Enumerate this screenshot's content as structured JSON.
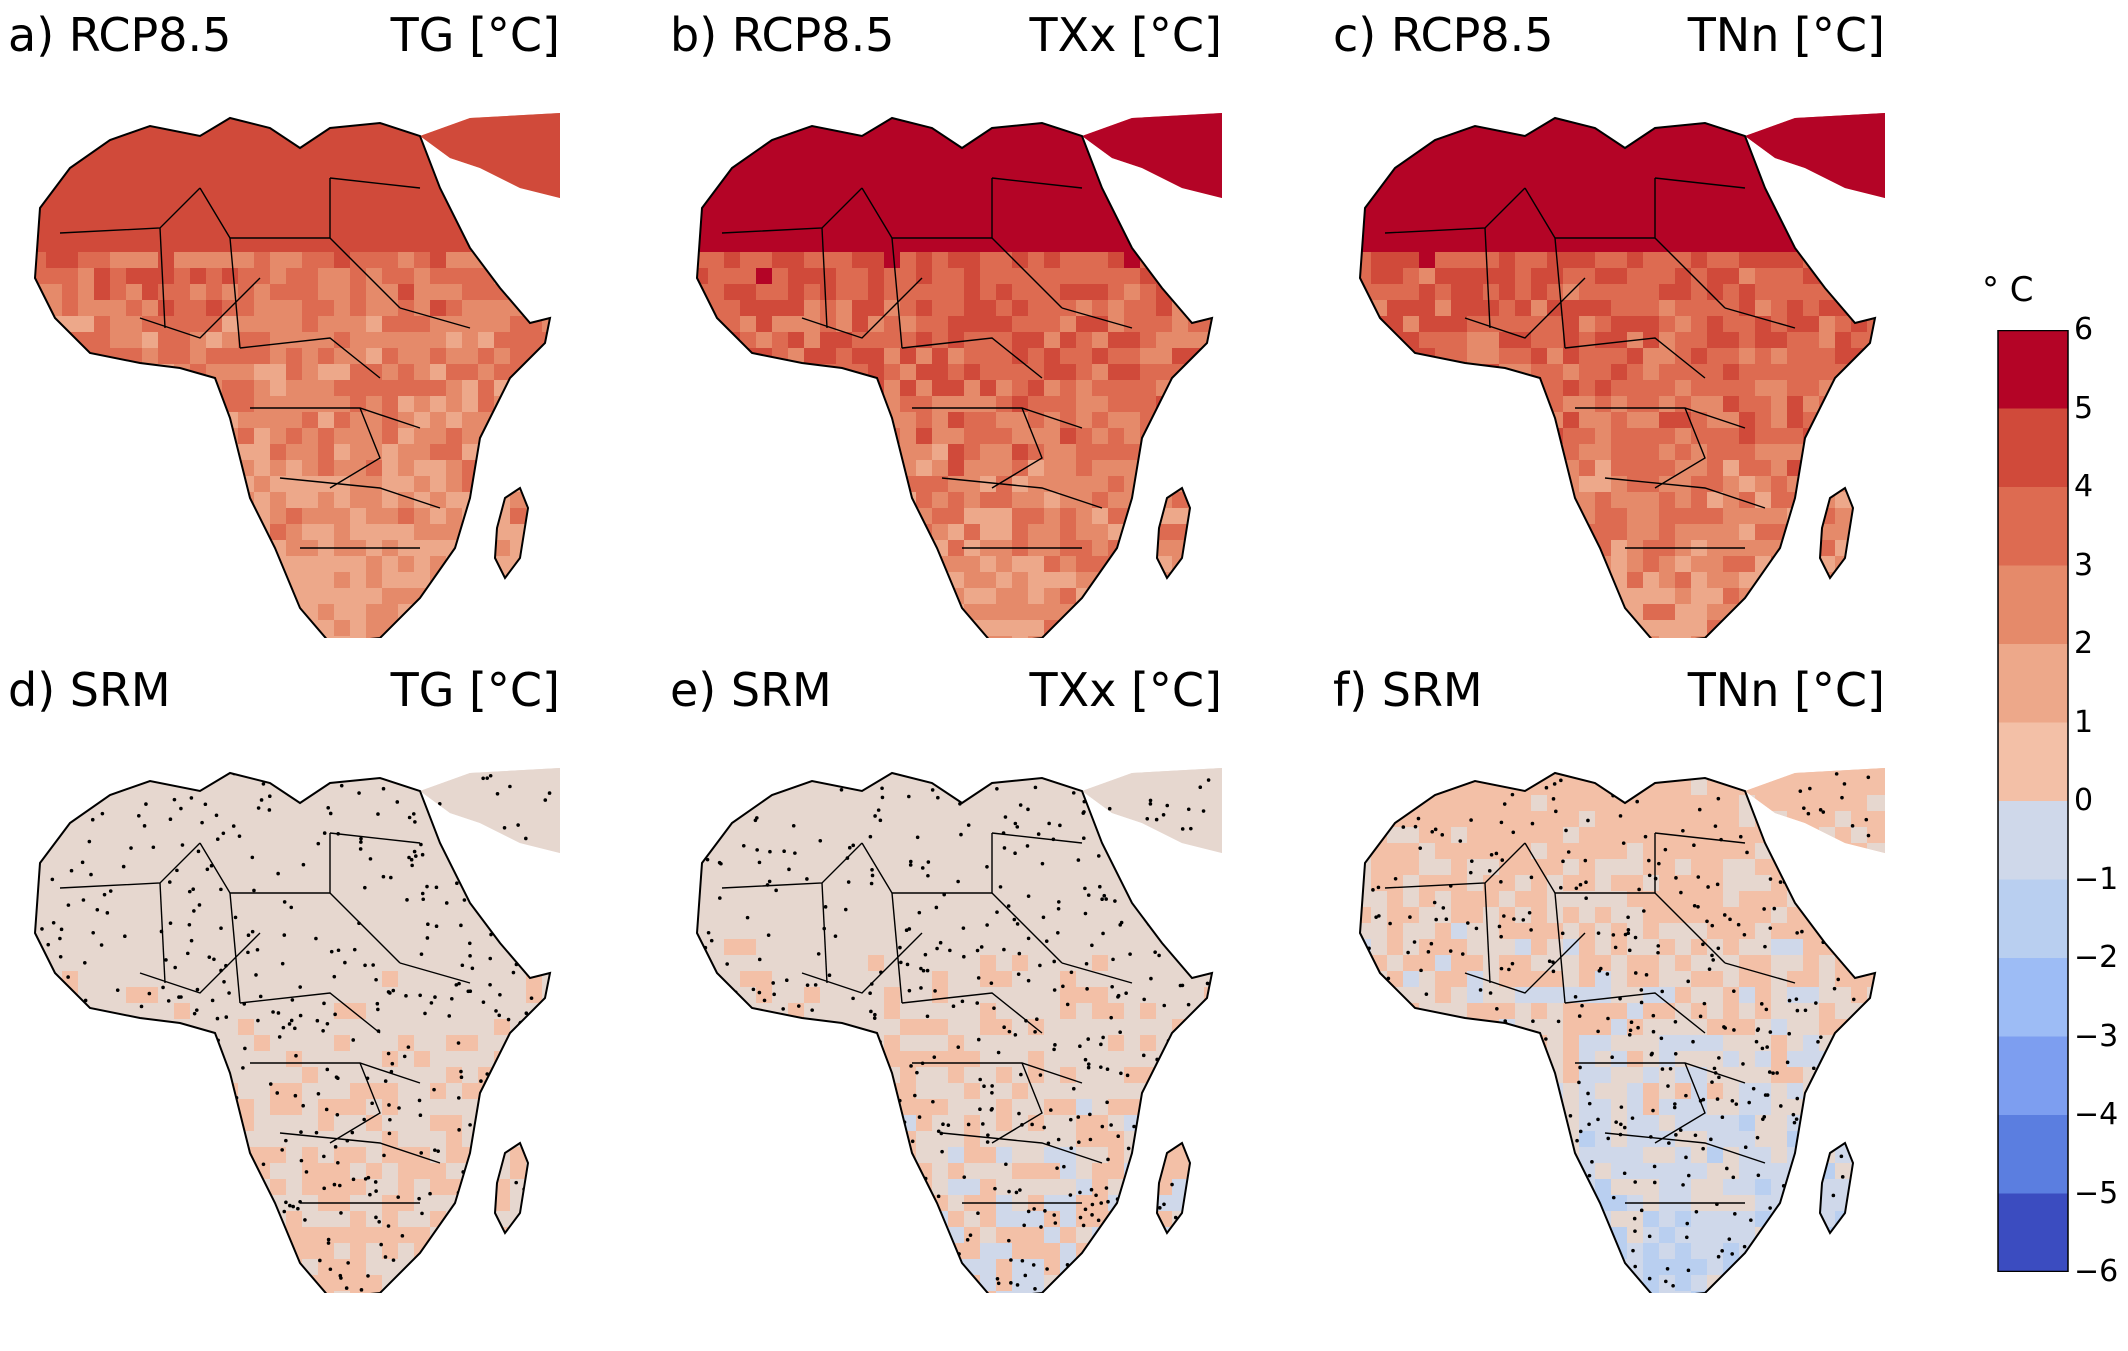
{
  "panels": [
    {
      "label": "a) RCP8.5",
      "variable": "TG [°C]",
      "palette": [
        "#d04a3a",
        "#dd6b51",
        "#e58a6a",
        "#eda88a"
      ],
      "base": "#e58a6a",
      "stipple": false,
      "hatch": false
    },
    {
      "label": "b) RCP8.5",
      "variable": "TXx [°C]",
      "palette": [
        "#b40426",
        "#d04a3a",
        "#dd6b51",
        "#e58a6a",
        "#eda88a"
      ],
      "base": "#dd6b51",
      "stipple": false,
      "hatch": false
    },
    {
      "label": "c) RCP8.5",
      "variable": "TNn [°C]",
      "palette": [
        "#b40426",
        "#d04a3a",
        "#dd6b51",
        "#e58a6a",
        "#eda88a"
      ],
      "base": "#d04a3a",
      "stipple": false,
      "hatch": false
    },
    {
      "label": "d) SRM",
      "variable": "TG [°C]",
      "palette": [
        "#e6d7cf",
        "#e6d7cf",
        "#e6d7cf",
        "#f3c0a7"
      ],
      "base": "#e6d7cf",
      "stipple": true,
      "hatch": false
    },
    {
      "label": "e) SRM",
      "variable": "TXx [°C]",
      "palette": [
        "#e6d7cf",
        "#e6d7cf",
        "#e6d7cf",
        "#f3c0a7",
        "#cfd8ea"
      ],
      "base": "#e6d7cf",
      "stipple": true,
      "hatch": false
    },
    {
      "label": "f) SRM",
      "variable": "TNn [°C]",
      "palette": [
        "#f3c0a7",
        "#f3c0a7",
        "#e6d7cf",
        "#cfd8ea",
        "#b9cff0"
      ],
      "base": "#f3c0a7",
      "stipple": true,
      "hatch": false
    }
  ],
  "colorbar": {
    "unit": "° C",
    "ticks": [
      "6",
      "5",
      "4",
      "3",
      "2",
      "1",
      "0",
      "−1",
      "−2",
      "−3",
      "−4",
      "−5",
      "−6"
    ],
    "colors": [
      "#b40426",
      "#d04a3a",
      "#dd6b51",
      "#e58a6a",
      "#eda88a",
      "#f3c0a7",
      "#e6d7cf",
      "#cfd8ea",
      "#b9cff0",
      "#9dbcf5",
      "#7d9ef0",
      "#5b7ee0",
      "#3b4cc0"
    ]
  }
}
